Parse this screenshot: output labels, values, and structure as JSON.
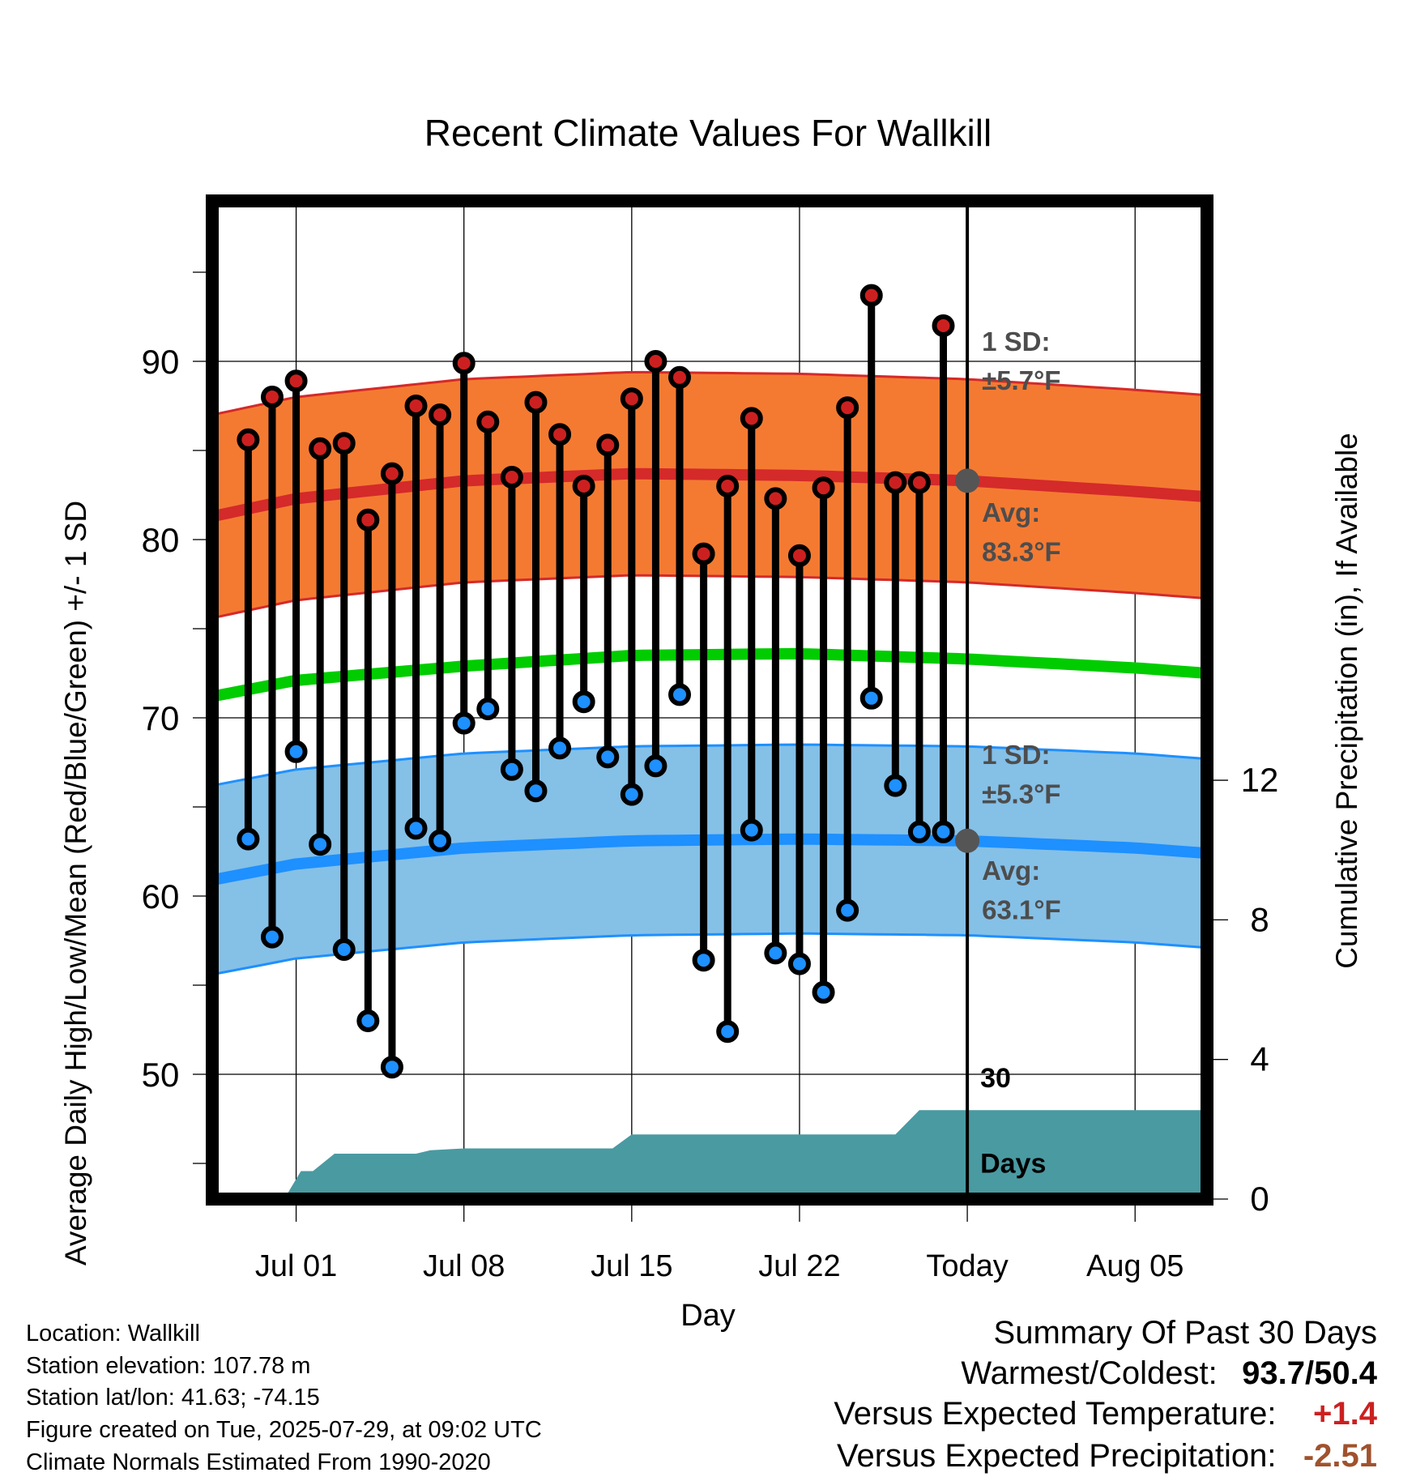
{
  "chart_data": {
    "type": "line",
    "title": "Recent Climate Values For Wallkill",
    "xlabel": "Day",
    "ylabel": "Average Daily High/Low/Mean (Red/Blue/Green) +/- 1 SD",
    "y2label": "Cumulative Precipitation (in), If Available",
    "ylim": [
      43,
      99
    ],
    "y2lim": [
      0,
      28.6
    ],
    "yticks": [
      "50",
      "60",
      "70",
      "80",
      "90"
    ],
    "y2ticks": [
      "0",
      "4",
      "8",
      "12"
    ],
    "x_range_days": [
      -3.5,
      38.0
    ],
    "x_ticks": [
      {
        "day": 0,
        "label": "Jul 01"
      },
      {
        "day": 7,
        "label": "Jul 08"
      },
      {
        "day": 14,
        "label": "Jul 15"
      },
      {
        "day": 21,
        "label": "Jul 22"
      },
      {
        "day": 28,
        "label": "Today"
      },
      {
        "day": 35,
        "label": "Aug 05"
      }
    ],
    "today_day": 28,
    "grid": true,
    "series": [
      {
        "name": "High",
        "color": "#cc2020",
        "days": [
          -2,
          -1,
          0,
          1,
          2,
          3,
          4,
          5,
          6,
          7,
          8,
          9,
          10,
          11,
          12,
          13,
          14,
          15,
          16,
          17,
          18,
          19,
          20,
          21,
          22,
          23,
          24,
          25,
          26,
          27
        ],
        "values": [
          85.6,
          88.0,
          88.9,
          85.1,
          85.4,
          81.1,
          83.7,
          87.5,
          87.0,
          89.9,
          86.6,
          83.5,
          87.7,
          85.9,
          83.0,
          85.3,
          87.9,
          90.0,
          89.1,
          79.2,
          83.0,
          86.8,
          82.3,
          79.1,
          82.9,
          87.4,
          93.7,
          83.2,
          83.2,
          92.0
        ]
      },
      {
        "name": "Low",
        "color": "#1e90ff",
        "days": [
          -2,
          -1,
          0,
          1,
          2,
          3,
          4,
          5,
          6,
          7,
          8,
          9,
          10,
          11,
          12,
          13,
          14,
          15,
          16,
          17,
          18,
          19,
          20,
          21,
          22,
          23,
          24,
          25,
          26,
          27
        ],
        "values": [
          63.2,
          57.7,
          68.1,
          62.9,
          57.0,
          53.0,
          50.4,
          63.8,
          63.1,
          69.7,
          70.5,
          67.1,
          65.9,
          68.3,
          70.9,
          67.8,
          65.7,
          67.3,
          71.3,
          56.4,
          52.4,
          63.7,
          56.8,
          56.2,
          54.6,
          59.2,
          71.1,
          66.2,
          63.6,
          63.6
        ]
      }
    ],
    "normal_high": {
      "color": "#d42a2a",
      "band_color": "#f47a32",
      "sd": "±5.7°F",
      "avg": "83.3°F",
      "days": [
        -3.5,
        0,
        7,
        14,
        21,
        28,
        35,
        38
      ],
      "values": [
        81.3,
        82.3,
        83.3,
        83.7,
        83.6,
        83.3,
        82.7,
        82.4
      ]
    },
    "normal_low": {
      "color": "#1e90ff",
      "band_color": "#85c0e7",
      "sd": "±5.3°F",
      "avg": "63.1°F",
      "days": [
        -3.5,
        0,
        7,
        14,
        21,
        28,
        35,
        38
      ],
      "values": [
        60.9,
        61.8,
        62.7,
        63.1,
        63.2,
        63.1,
        62.7,
        62.4
      ]
    },
    "normal_mean": {
      "color": "#00cc00",
      "days": [
        -3.5,
        0,
        7,
        14,
        21,
        28,
        35,
        38
      ],
      "values": [
        71.2,
        72.1,
        72.9,
        73.5,
        73.6,
        73.3,
        72.8,
        72.5
      ]
    },
    "precip": {
      "color": "#4a9aa2",
      "label": "30 Days",
      "days": [
        -3.5,
        -0.5,
        -0.5,
        0.2,
        0.7,
        1.6,
        2,
        5,
        5.6,
        7,
        13.2,
        14.0,
        25.0,
        26.0,
        38.0
      ],
      "values": [
        0,
        0,
        0,
        0.8,
        0.8,
        1.3,
        1.3,
        1.3,
        1.4,
        1.45,
        1.45,
        1.85,
        1.85,
        2.55,
        2.55
      ]
    },
    "labels": {
      "sd_title": "1 SD:",
      "avg_title": "Avg:",
      "days_count": "30",
      "days_word": "Days"
    }
  },
  "meta": {
    "location": "Location: Wallkill",
    "elevation": "Station elevation: 107.78 m",
    "latlon": "Station lat/lon: 41.63; -74.15",
    "created": "Figure created on Tue, 2025-07-29, at 09:02 UTC",
    "normals": "Climate Normals Estimated From 1990-2020"
  },
  "summary": {
    "title": "Summary Of Past 30 Days",
    "warm_cold_label": "Warmest/Coldest:",
    "warm_cold_value": "93.7/50.4",
    "temp_label": "Versus Expected Temperature:",
    "temp_value": "+1.4",
    "temp_color": "#cc2020",
    "precip_label": "Versus Expected Precipitation:",
    "precip_value": "-2.51",
    "precip_color": "#a0522d"
  }
}
